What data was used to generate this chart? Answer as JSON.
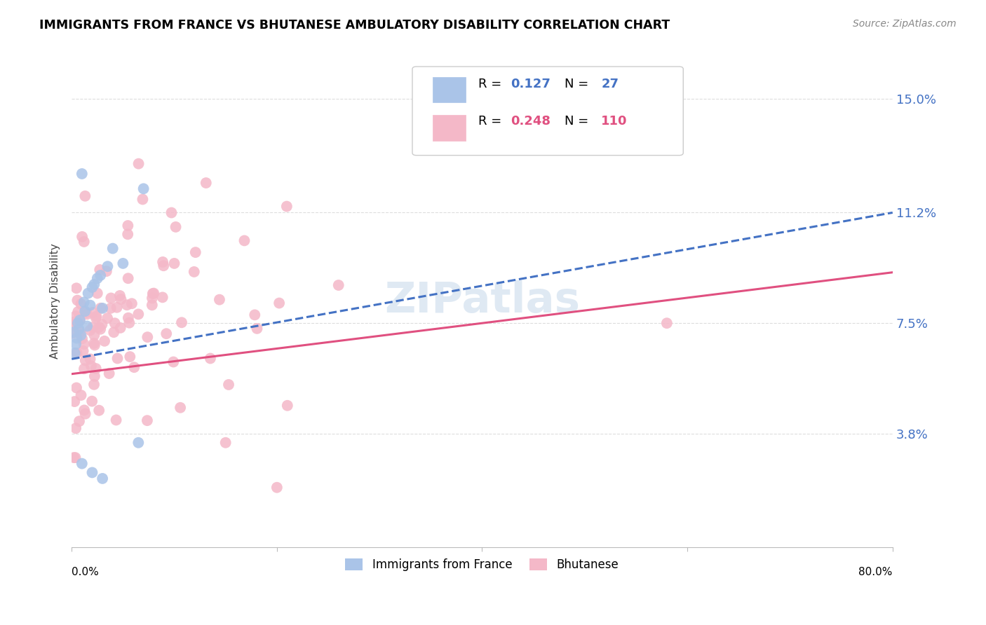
{
  "title": "IMMIGRANTS FROM FRANCE VS BHUTANESE AMBULATORY DISABILITY CORRELATION CHART",
  "source": "Source: ZipAtlas.com",
  "ylabel": "Ambulatory Disability",
  "legend_france_r": "0.127",
  "legend_france_n": "27",
  "legend_bhutan_r": "0.248",
  "legend_bhutan_n": "110",
  "france_color": "#aac4e8",
  "bhutan_color": "#f4b8c8",
  "france_line_color": "#4472c4",
  "bhutan_line_color": "#e05080",
  "france_line_style": "--",
  "bhutan_line_style": "-",
  "xlim": [
    0,
    0.8
  ],
  "ylim": [
    0,
    0.165
  ],
  "ytick_vals": [
    0.038,
    0.075,
    0.112,
    0.15
  ],
  "ytick_labels": [
    "3.8%",
    "7.5%",
    "11.2%",
    "15.0%"
  ],
  "watermark": "ZIPatlas",
  "grid_color": "#dddddd",
  "legend_box_color": "#e0e0e0"
}
